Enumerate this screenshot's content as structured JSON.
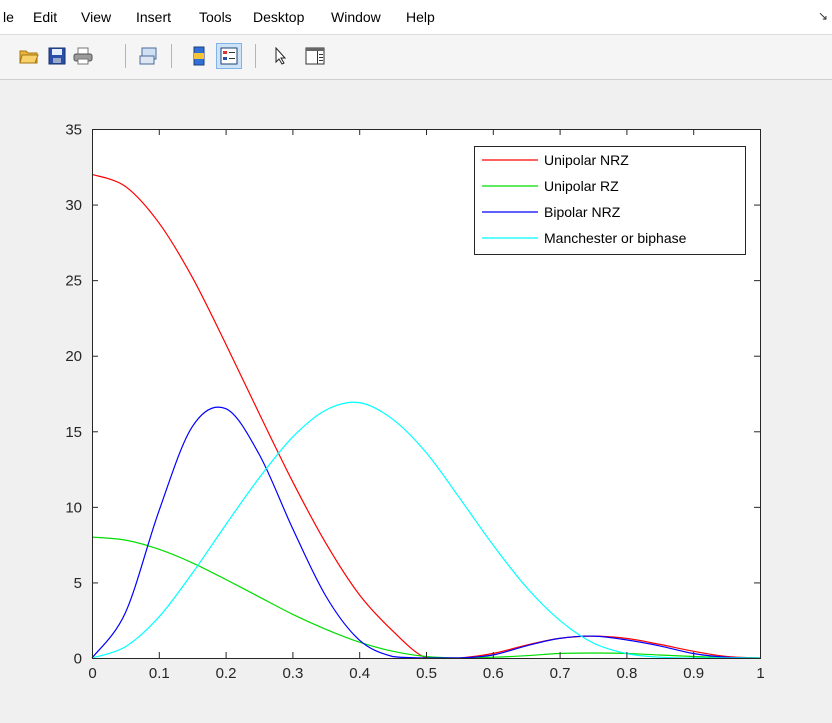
{
  "menu": {
    "items": [
      "le",
      "Edit",
      "View",
      "Insert",
      "Tools",
      "Desktop",
      "Window",
      "Help"
    ]
  },
  "toolbar": {
    "icons": [
      "open-file-icon",
      "save-icon",
      "print-icon",
      "link-plot-icon",
      "colorbar-icon",
      "legend-icon",
      "edit-plot-icon",
      "property-inspector-icon"
    ]
  },
  "chart_data": {
    "type": "line",
    "xlim": [
      0,
      1
    ],
    "ylim": [
      0,
      35
    ],
    "xticks": [
      "0",
      "0.1",
      "0.2",
      "0.3",
      "0.4",
      "0.5",
      "0.6",
      "0.7",
      "0.8",
      "0.9",
      "1"
    ],
    "yticks": [
      "0",
      "5",
      "10",
      "15",
      "20",
      "25",
      "30",
      "35"
    ],
    "legend_position": "top-right",
    "grid": false,
    "x": [
      0,
      0.05,
      0.1,
      0.15,
      0.2,
      0.25,
      0.3,
      0.35,
      0.4,
      0.45,
      0.5,
      0.55,
      0.6,
      0.65,
      0.7,
      0.75,
      0.8,
      0.85,
      0.9,
      0.95,
      1.0
    ],
    "series": [
      {
        "name": "Unipolar NRZ",
        "color": "#ff0000",
        "values": [
          32.0,
          31.2,
          28.8,
          25.2,
          20.8,
          16.2,
          11.7,
          7.6,
          4.2,
          1.8,
          0.0,
          0.0,
          0.3,
          0.85,
          1.3,
          1.45,
          1.3,
          0.9,
          0.45,
          0.1,
          0.0
        ]
      },
      {
        "name": "Unipolar RZ",
        "color": "#00dd00",
        "values": [
          8.0,
          7.8,
          7.2,
          6.3,
          5.2,
          4.05,
          2.9,
          1.9,
          1.05,
          0.45,
          0.1,
          0.0,
          0.05,
          0.15,
          0.3,
          0.33,
          0.3,
          0.2,
          0.1,
          0.02,
          0.0
        ]
      },
      {
        "name": "Bipolar NRZ",
        "color": "#0000ff",
        "values": [
          0.0,
          3.0,
          9.7,
          15.3,
          16.5,
          13.5,
          8.6,
          4.1,
          1.2,
          0.1,
          0.0,
          0.0,
          0.2,
          0.8,
          1.3,
          1.45,
          1.2,
          0.8,
          0.3,
          0.05,
          0.0
        ]
      },
      {
        "name": "Manchester or biphase",
        "color": "#00ffff",
        "values": [
          0.0,
          0.75,
          2.7,
          5.6,
          8.8,
          11.9,
          14.6,
          16.4,
          16.9,
          15.8,
          13.6,
          10.6,
          7.5,
          4.7,
          2.5,
          1.0,
          0.3,
          0.05,
          0.0,
          0.0,
          0.0
        ]
      }
    ]
  }
}
